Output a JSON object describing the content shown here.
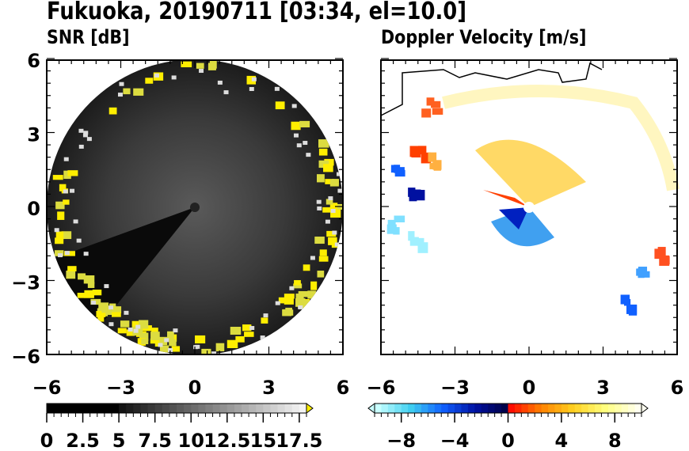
{
  "title": "Fukuoka, 20190711 [03:34, el=10.0]",
  "chart_data": [
    {
      "type": "heatmap",
      "title": "SNR [dB]",
      "xlim": [
        -6,
        6
      ],
      "ylim": [
        -6,
        6
      ],
      "xticks": [
        "-6",
        "-3",
        "0",
        "3",
        "6"
      ],
      "yticks": [
        "6",
        "3",
        "0",
        "-3",
        "-6"
      ],
      "colorbar": {
        "range": [
          0,
          18
        ],
        "ticks": [
          "0",
          "2.5",
          "5",
          "7.5",
          "10",
          "12.5",
          "15",
          "17.5"
        ],
        "extend": "max",
        "colors": [
          "#000000",
          "#ffffff"
        ],
        "over_color": "#ffee00"
      }
    },
    {
      "type": "heatmap",
      "title": "Doppler Velocity [m/s]",
      "xlim": [
        -6,
        6
      ],
      "ylim": [
        -6,
        6
      ],
      "xticks": [
        "-6",
        "-3",
        "0",
        "3",
        "6"
      ],
      "yticks": [
        "6",
        "3",
        "0",
        "-3",
        "-6"
      ],
      "colorbar": {
        "range": [
          -10,
          10
        ],
        "ticks": [
          "−8",
          "−4",
          "0",
          "4",
          "8"
        ],
        "extend": "both",
        "colors": [
          "#c8ffff",
          "#40d0f0",
          "#1060ff",
          "#0010a0",
          "#000040",
          "#ff0000",
          "#ff8000",
          "#ffd020",
          "#ffff80",
          "#fffff0"
        ]
      }
    }
  ]
}
